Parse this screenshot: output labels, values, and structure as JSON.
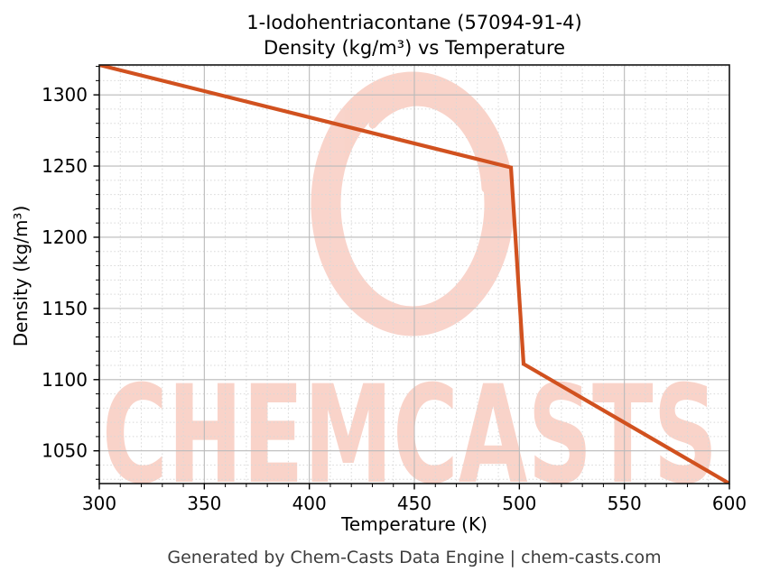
{
  "title": {
    "line1": "1-Iodohentriacontane (57094-91-4)",
    "line2": "Density (kg/m³) vs Temperature"
  },
  "axes": {
    "x_label": "Temperature (K)",
    "y_label": "Density (kg/m³)"
  },
  "footer": {
    "text": "Generated by Chem-Casts Data Engine | chem-casts.com"
  },
  "watermark": {
    "text": "CHEMCASTS",
    "logo": "brush-ring-logo",
    "color": "#e8552e",
    "opacity": 0.25
  },
  "chart_data": {
    "type": "line",
    "title": "1-Iodohentriacontane (57094-91-4) Density (kg/m³) vs Temperature",
    "xlabel": "Temperature (K)",
    "ylabel": "Density (kg/m³)",
    "xlim": [
      300,
      600
    ],
    "ylim": [
      1027,
      1321
    ],
    "x_ticks": [
      300,
      350,
      400,
      450,
      500,
      550,
      600
    ],
    "y_ticks": [
      1050,
      1100,
      1150,
      1200,
      1250,
      1300
    ],
    "x_minor_step": 10,
    "y_minor_step": 10,
    "grid": "major-solid-gray, minor-dotted-lightgray",
    "legend": "none",
    "series": [
      {
        "name": "Density",
        "color": "#d1511f",
        "line_width": 4.2,
        "points": [
          [
            300,
            1321
          ],
          [
            496,
            1249
          ],
          [
            502,
            1111
          ],
          [
            600,
            1027
          ]
        ]
      }
    ]
  },
  "colors": {
    "line": "#d1511f",
    "grid_major": "#bababa",
    "grid_minor": "#d8d8d8",
    "spine": "#151515",
    "tick": "#000000",
    "tick_label": "#000000",
    "footer_text": "#3d3d3d",
    "watermark": "#e8552e"
  }
}
